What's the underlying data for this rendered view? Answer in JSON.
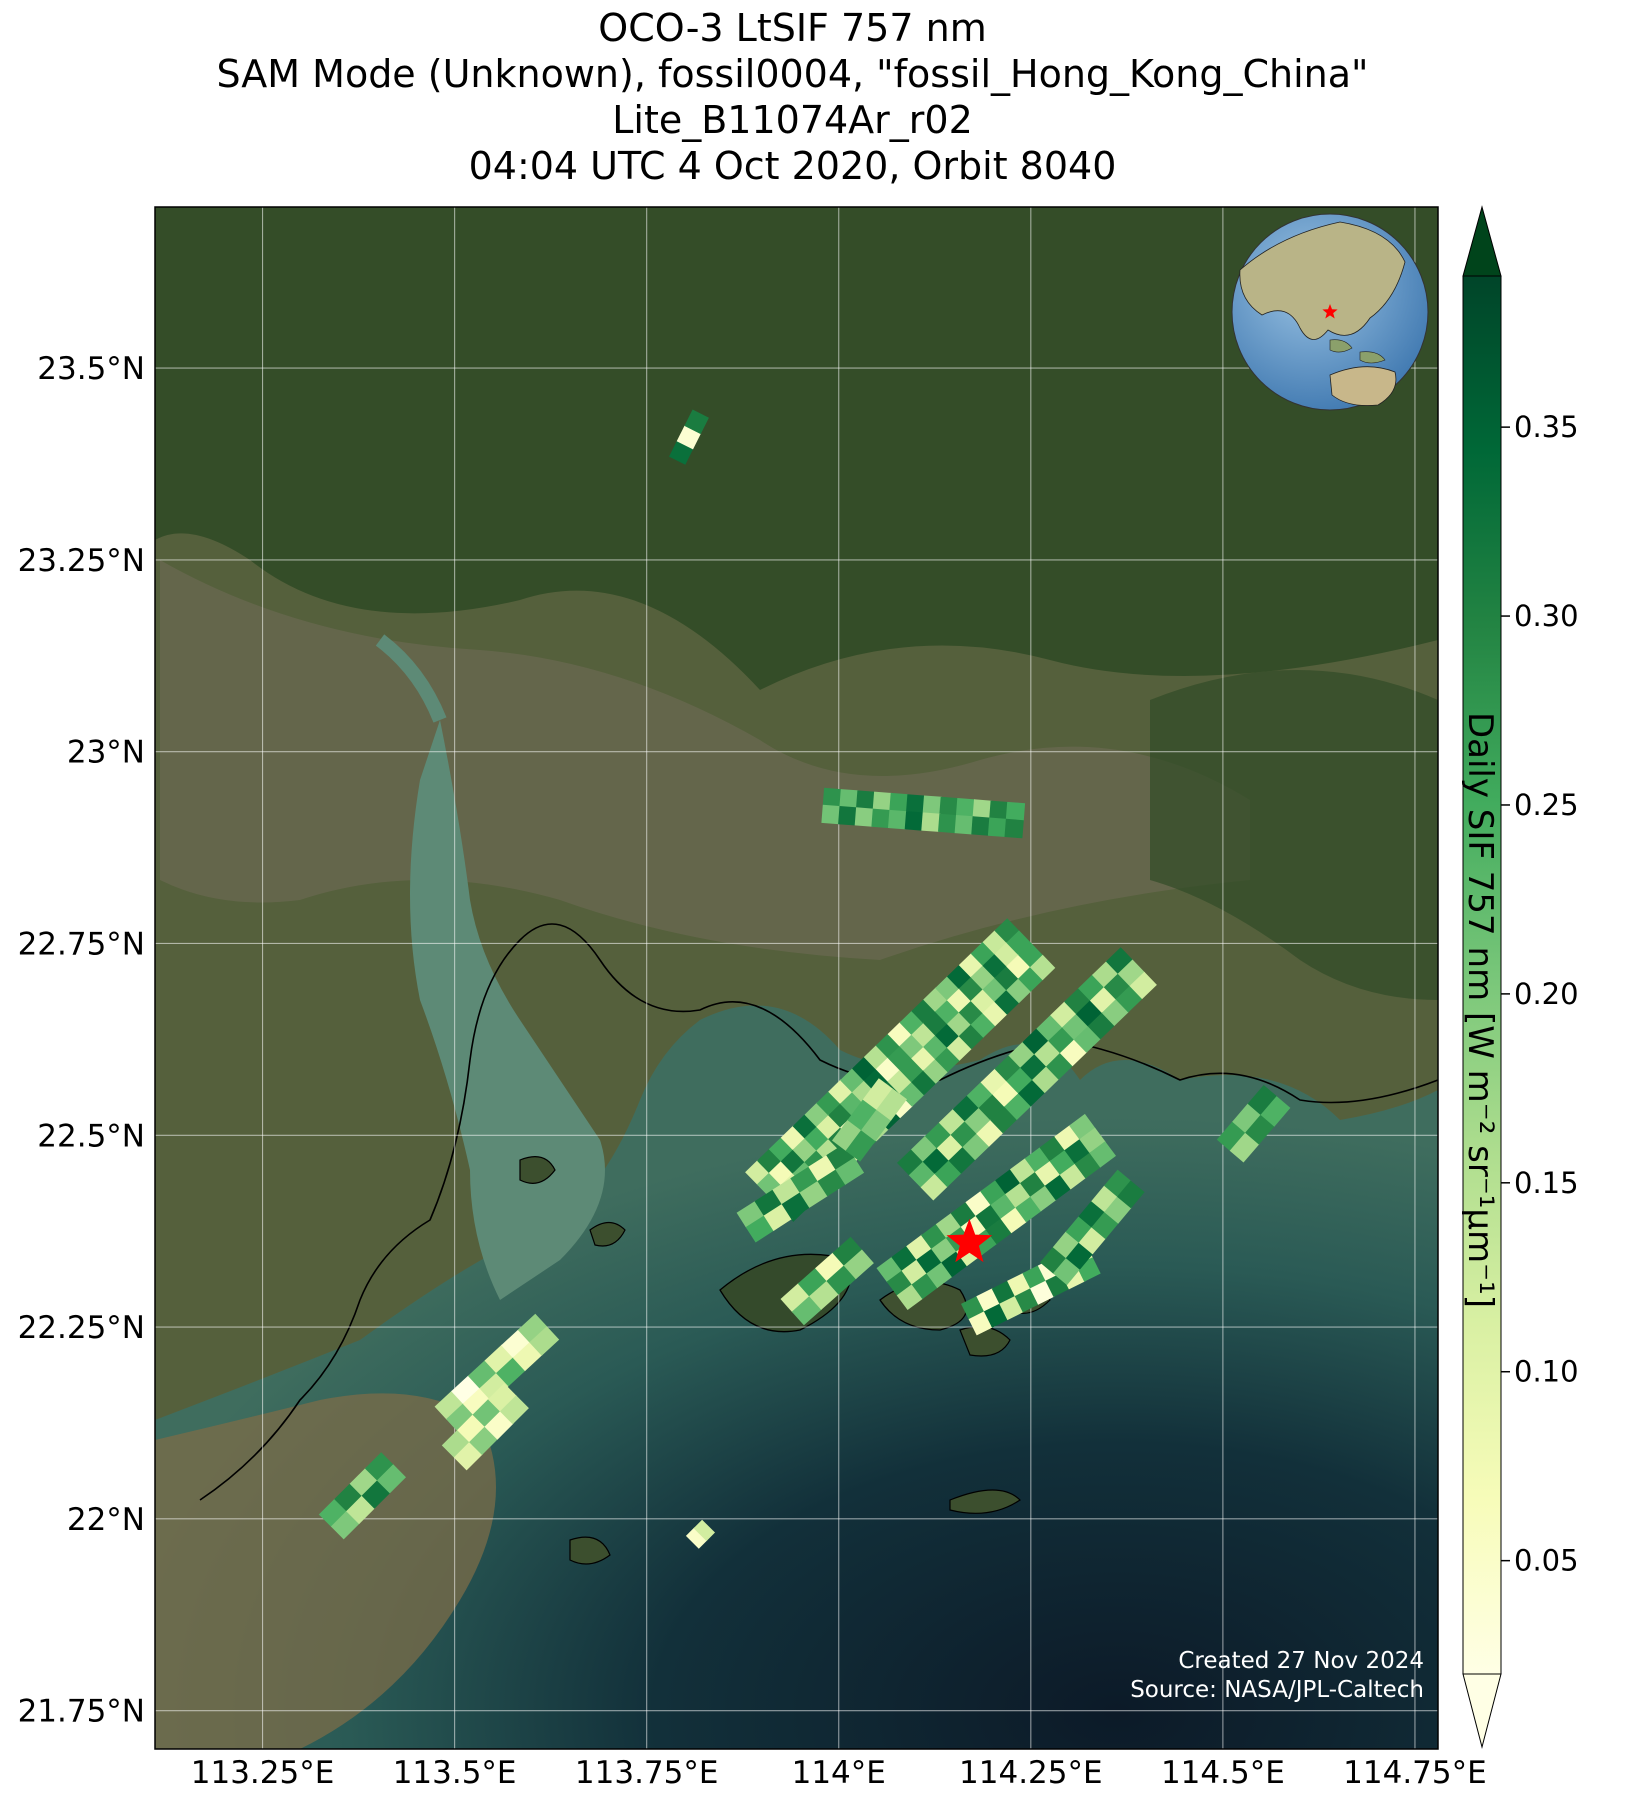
{
  "titles": {
    "line1": "OCO-3 LtSIF 757 nm",
    "line2": "SAM Mode (Unknown), fossil0004, \"fossil_Hong_Kong_China\"",
    "line3": "Lite_B11074Ar_r02",
    "line4": "04:04 UTC 4 Oct 2020, Orbit 8040"
  },
  "map": {
    "lon_range": [
      113.11,
      114.78
    ],
    "lat_range": [
      21.7,
      23.71
    ],
    "lon_ticks": [
      {
        "value": 113.25,
        "label": "113.25°E"
      },
      {
        "value": 113.5,
        "label": "113.5°E"
      },
      {
        "value": 113.75,
        "label": "113.75°E"
      },
      {
        "value": 114.0,
        "label": "114°E"
      },
      {
        "value": 114.25,
        "label": "114.25°E"
      },
      {
        "value": 114.5,
        "label": "114.5°E"
      },
      {
        "value": 114.75,
        "label": "114.75°E"
      }
    ],
    "lat_ticks": [
      {
        "value": 23.5,
        "label": "23.5°N"
      },
      {
        "value": 23.25,
        "label": "23.25°N"
      },
      {
        "value": 23.0,
        "label": "23°N"
      },
      {
        "value": 22.75,
        "label": "22.75°N"
      },
      {
        "value": 22.5,
        "label": "22.5°N"
      },
      {
        "value": 22.25,
        "label": "22.25°N"
      },
      {
        "value": 22.0,
        "label": "22°N"
      },
      {
        "value": 21.75,
        "label": "21.75°N"
      }
    ],
    "gridlines": true,
    "target": {
      "name": "fossil_Hong_Kong_China",
      "lon": 114.17,
      "lat": 22.36,
      "marker": "star",
      "color": "#ff0000"
    },
    "inset_globe": {
      "placement": "top-right",
      "marker": "star",
      "marker_color": "#ff0000"
    },
    "colors": {
      "land": "#4a5a35",
      "forest": "#2e4a22",
      "water_shallow": "#5a8a78",
      "sea_deep": "#0e2030",
      "sediment": "#7a6a48"
    }
  },
  "colorbar": {
    "label": "Daily SIF 757 nm [W m⁻² sr⁻¹μm⁻¹]",
    "range": [
      0.02,
      0.39
    ],
    "extend": "both",
    "colormap": "YlGn",
    "ticks": [
      {
        "value": 0.05,
        "label": "0.05"
      },
      {
        "value": 0.1,
        "label": "0.10"
      },
      {
        "value": 0.15,
        "label": "0.15"
      },
      {
        "value": 0.2,
        "label": "0.20"
      },
      {
        "value": 0.25,
        "label": "0.25"
      },
      {
        "value": 0.3,
        "label": "0.30"
      },
      {
        "value": 0.35,
        "label": "0.35"
      }
    ]
  },
  "swaths": [
    {
      "start_lon": 113.98,
      "start_lat": 22.93,
      "end_lon": 114.24,
      "end_lat": 22.91,
      "rows": 2,
      "cols": 12,
      "values": [
        0.28,
        0.22,
        0.31,
        0.18,
        0.26,
        0.33,
        0.2,
        0.29,
        0.24,
        0.17,
        0.3,
        0.25,
        0.21,
        0.32,
        0.19,
        0.27,
        0.23,
        0.34,
        0.16,
        0.28,
        0.22,
        0.31,
        0.26,
        0.3
      ]
    },
    {
      "start_lon": 113.91,
      "start_lat": 22.42,
      "end_lon": 114.25,
      "end_lat": 22.75,
      "rows": 4,
      "cols": 22,
      "values": [
        0.12,
        0.3,
        0.25,
        0.08,
        0.33,
        0.19,
        0.27,
        0.1,
        0.22,
        0.35,
        0.15,
        0.28,
        0.06,
        0.24,
        0.31,
        0.17,
        0.2,
        0.34,
        0.09,
        0.26,
        0.13,
        0.29,
        0.21,
        0.07,
        0.32,
        0.18,
        0.25,
        0.11,
        0.3,
        0.23,
        0.16,
        0.34,
        0.05,
        0.27,
        0.2,
        0.14,
        0.31,
        0.24,
        0.08,
        0.29,
        0.18,
        0.33,
        0.12,
        0.26,
        0.35,
        0.1,
        0.22,
        0.28,
        0.15,
        0.3,
        0.06,
        0.25,
        0.19,
        0.32,
        0.13,
        0.27,
        0.09,
        0.23,
        0.34,
        0.17,
        0.29,
        0.11,
        0.21,
        0.31,
        0.07,
        0.26,
        0.33,
        0.14,
        0.24,
        0.2,
        0.3,
        0.1,
        0.28,
        0.16,
        0.35,
        0.05,
        0.22,
        0.32,
        0.18,
        0.27,
        0.12,
        0.3,
        0.24,
        0.09,
        0.33,
        0.19,
        0.26,
        0.15
      ]
    },
    {
      "start_lon": 114.1,
      "start_lat": 22.44,
      "end_lon": 114.39,
      "end_lat": 22.72,
      "rows": 3,
      "cols": 16,
      "values": [
        0.31,
        0.2,
        0.27,
        0.14,
        0.33,
        0.24,
        0.09,
        0.29,
        0.18,
        0.35,
        0.22,
        0.12,
        0.3,
        0.26,
        0.16,
        0.32,
        0.23,
        0.34,
        0.11,
        0.28,
        0.19,
        0.3,
        0.07,
        0.25,
        0.33,
        0.15,
        0.27,
        0.21,
        0.35,
        0.1,
        0.29,
        0.17,
        0.13,
        0.26,
        0.32,
        0.2,
        0.08,
        0.3,
        0.24,
        0.34,
        0.16,
        0.28,
        0.06,
        0.22,
        0.31,
        0.19,
        0.27,
        0.12
      ]
    },
    {
      "start_lon": 114.07,
      "start_lat": 22.3,
      "end_lon": 114.34,
      "end_lat": 22.5,
      "rows": 3,
      "cols": 14,
      "values": [
        0.22,
        0.33,
        0.1,
        0.28,
        0.17,
        0.31,
        0.05,
        0.26,
        0.35,
        0.14,
        0.24,
        0.3,
        0.08,
        0.2,
        0.29,
        0.12,
        0.34,
        0.19,
        0.27,
        0.06,
        0.32,
        0.23,
        0.15,
        0.3,
        0.09,
        0.25,
        0.33,
        0.18,
        0.16,
        0.28,
        0.21,
        0.35,
        0.11,
        0.26,
        0.31,
        0.07,
        0.24,
        0.19,
        0.34,
        0.13,
        0.29,
        0.22
      ]
    },
    {
      "start_lon": 114.17,
      "start_lat": 22.26,
      "end_lon": 114.33,
      "end_lat": 22.34,
      "rows": 2,
      "cols": 8,
      "values": [
        0.28,
        0.05,
        0.32,
        0.08,
        0.26,
        0.04,
        0.3,
        0.1,
        0.06,
        0.34,
        0.12,
        0.29,
        0.03,
        0.31,
        0.09,
        0.25
      ]
    },
    {
      "start_lon": 114.28,
      "start_lat": 22.32,
      "end_lon": 114.38,
      "end_lat": 22.44,
      "rows": 2,
      "cols": 6,
      "values": [
        0.3,
        0.18,
        0.26,
        0.33,
        0.14,
        0.28,
        0.21,
        0.34,
        0.12,
        0.27,
        0.19,
        0.31
      ]
    },
    {
      "start_lon": 113.88,
      "start_lat": 22.38,
      "end_lon": 114.02,
      "end_lat": 22.47,
      "rows": 2,
      "cols": 6,
      "values": [
        0.2,
        0.32,
        0.14,
        0.27,
        0.08,
        0.3,
        0.25,
        0.11,
        0.33,
        0.18,
        0.29,
        0.22
      ]
    },
    {
      "start_lon": 113.94,
      "start_lat": 22.27,
      "end_lon": 114.03,
      "end_lat": 22.35,
      "rows": 2,
      "cols": 4,
      "values": [
        0.12,
        0.26,
        0.07,
        0.3,
        0.22,
        0.15,
        0.28,
        0.18
      ]
    },
    {
      "start_lon": 114.01,
      "start_lat": 22.48,
      "end_lon": 114.07,
      "end_lat": 22.56,
      "rows": 2,
      "cols": 3,
      "values": [
        0.18,
        0.24,
        0.12,
        0.27,
        0.2,
        0.15
      ]
    },
    {
      "start_lon": 114.51,
      "start_lat": 22.48,
      "end_lon": 114.57,
      "end_lat": 22.55,
      "rows": 2,
      "cols": 3,
      "values": [
        0.27,
        0.2,
        0.31,
        0.17,
        0.29,
        0.24
      ]
    },
    {
      "start_lon": 113.49,
      "start_lat": 22.13,
      "end_lon": 113.62,
      "end_lat": 22.25,
      "rows": 2,
      "cols": 6,
      "values": [
        0.14,
        0.02,
        0.22,
        0.1,
        0.04,
        0.18,
        0.2,
        0.06,
        0.12,
        0.24,
        0.08,
        0.16
      ]
    },
    {
      "start_lon": 113.5,
      "start_lat": 22.08,
      "end_lon": 113.58,
      "end_lat": 22.16,
      "rows": 2,
      "cols": 4,
      "values": [
        0.16,
        0.07,
        0.21,
        0.11,
        0.1,
        0.19,
        0.05,
        0.14
      ]
    },
    {
      "start_lon": 113.34,
      "start_lat": 21.99,
      "end_lon": 113.42,
      "end_lat": 22.07,
      "rows": 2,
      "cols": 4,
      "values": [
        0.24,
        0.3,
        0.17,
        0.28,
        0.2,
        0.14,
        0.32,
        0.22
      ]
    },
    {
      "start_lon": 113.79,
      "start_lat": 23.38,
      "end_lon": 113.82,
      "end_lat": 23.44,
      "rows": 1,
      "cols": 3,
      "values": [
        0.33,
        0.04,
        0.31
      ]
    },
    {
      "start_lon": 113.81,
      "start_lat": 21.97,
      "end_lon": 113.83,
      "end_lat": 21.99,
      "rows": 1,
      "cols": 2,
      "values": [
        0.05,
        0.12
      ]
    }
  ],
  "credit": {
    "created": "Created 27 Nov 2024",
    "source": "Source: NASA/JPL-Caltech"
  }
}
